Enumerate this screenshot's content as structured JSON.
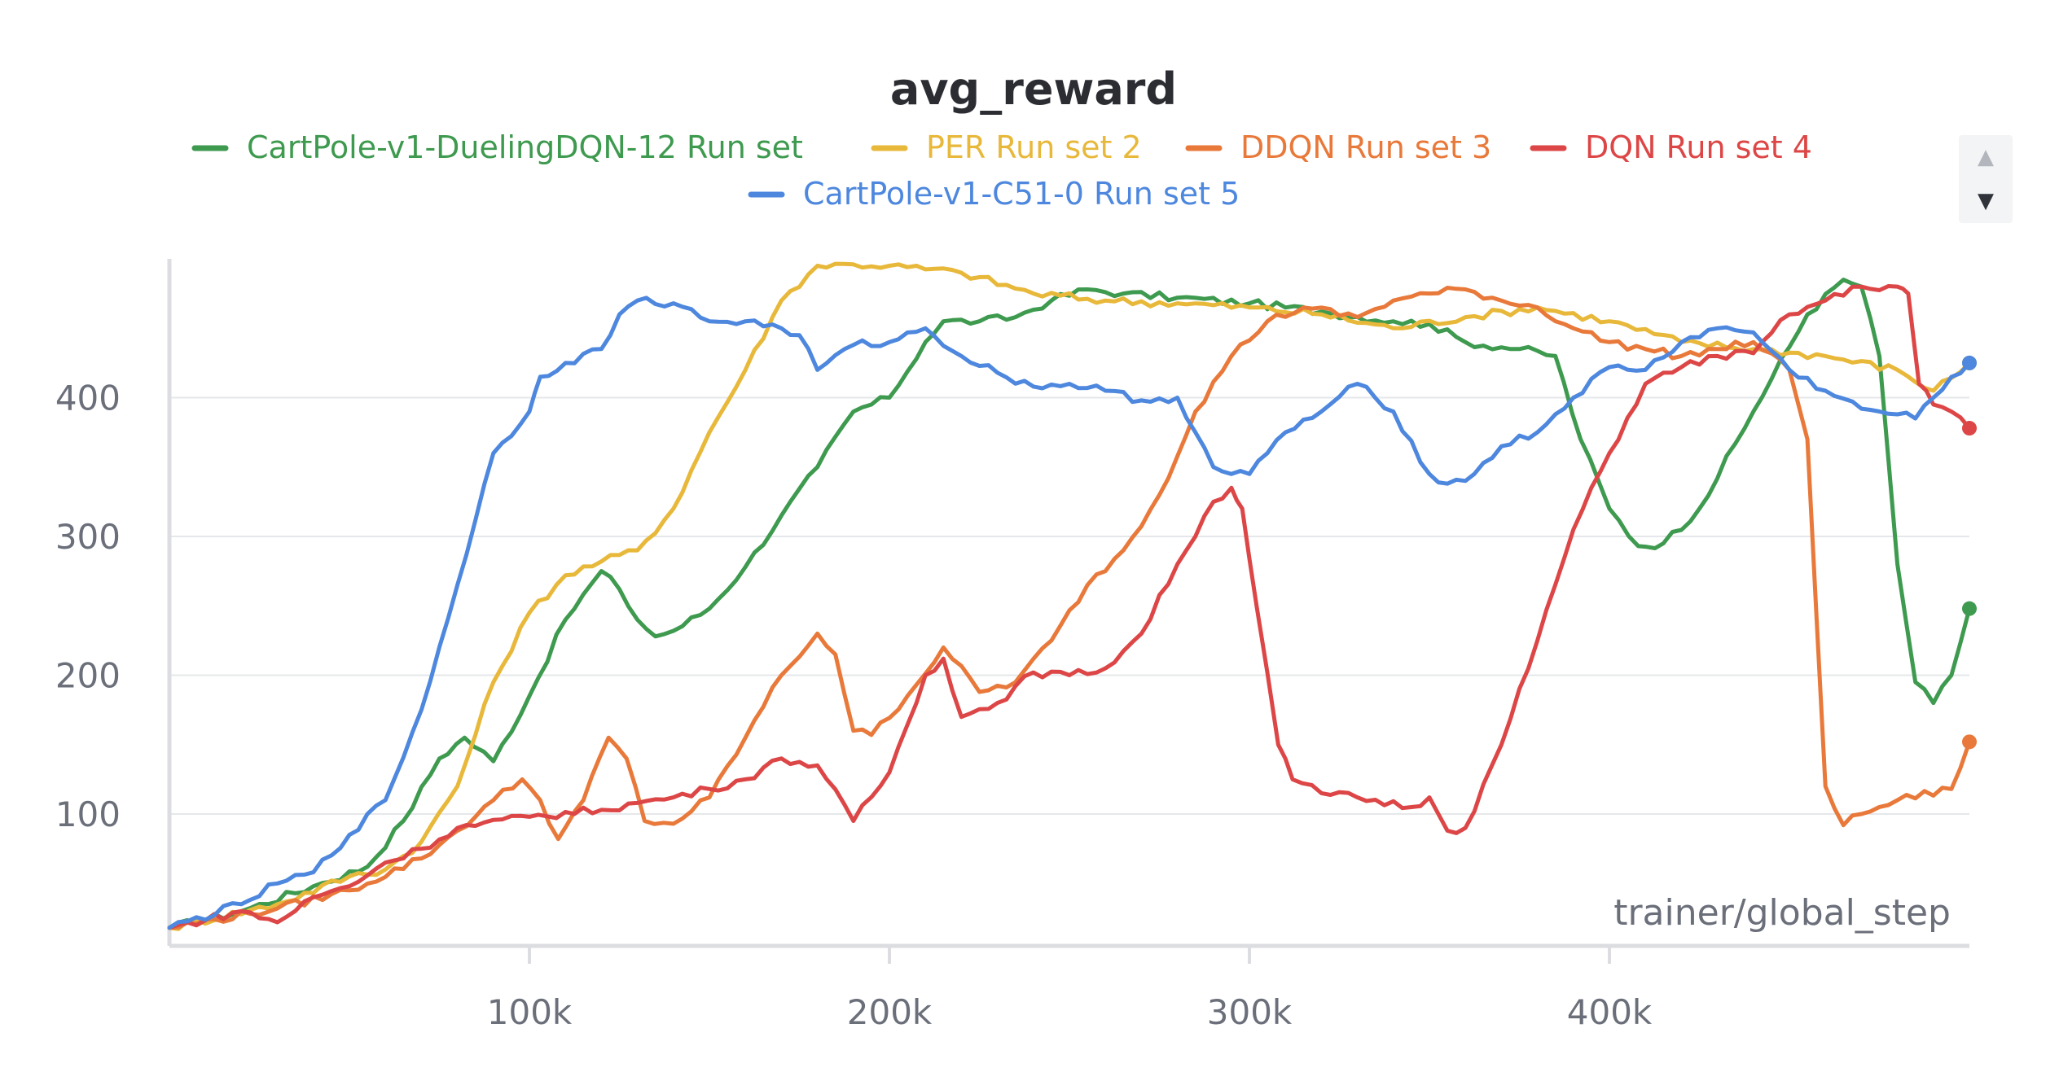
{
  "chart_data": {
    "type": "line",
    "title": "avg_reward",
    "xlabel": "trainer/global_step",
    "ylabel": "",
    "xlim": [
      0,
      500000
    ],
    "ylim": [
      5,
      500
    ],
    "x_ticks": [
      100000,
      200000,
      300000,
      400000
    ],
    "x_tick_labels": [
      "100k",
      "200k",
      "300k",
      "400k"
    ],
    "y_ticks": [
      100,
      200,
      300,
      400
    ],
    "y_tick_labels": [
      "100",
      "200",
      "300",
      "400"
    ],
    "grid": true,
    "legend_position": "top",
    "series": [
      {
        "name": "CartPole-v1-DuelingDQN-12 Run set",
        "color": "#3e9a4f",
        "x": [
          0,
          20000,
          40000,
          55000,
          65000,
          75000,
          82000,
          90000,
          100000,
          110000,
          120000,
          125000,
          130000,
          135000,
          140000,
          150000,
          160000,
          170000,
          180000,
          190000,
          200000,
          210000,
          215000,
          225000,
          235000,
          245000,
          255000,
          265000,
          280000,
          300000,
          320000,
          340000,
          350000,
          360000,
          375000,
          385000,
          392000,
          400000,
          408000,
          415000,
          425000,
          440000,
          455000,
          465000,
          470000,
          475000,
          480000,
          485000,
          490000,
          495000,
          500000
        ],
        "values": [
          18,
          30,
          48,
          62,
          95,
          140,
          155,
          138,
          185,
          240,
          275,
          262,
          240,
          228,
          232,
          248,
          278,
          315,
          350,
          390,
          400,
          440,
          455,
          455,
          458,
          470,
          478,
          475,
          472,
          468,
          462,
          455,
          453,
          440,
          435,
          430,
          370,
          320,
          293,
          295,
          320,
          390,
          460,
          485,
          480,
          430,
          280,
          195,
          180,
          200,
          248
        ]
      },
      {
        "name": "PER Run set 2",
        "color": "#e8b83a",
        "x": [
          0,
          30000,
          50000,
          60000,
          70000,
          80000,
          90000,
          100000,
          110000,
          120000,
          130000,
          140000,
          150000,
          160000,
          170000,
          180000,
          190000,
          200000,
          220000,
          240000,
          260000,
          280000,
          300000,
          320000,
          340000,
          360000,
          380000,
          400000,
          420000,
          440000,
          460000,
          480000,
          490000,
          500000
        ],
        "values": [
          18,
          35,
          55,
          60,
          80,
          120,
          195,
          245,
          272,
          282,
          290,
          320,
          375,
          420,
          470,
          495,
          496,
          495,
          490,
          475,
          470,
          468,
          465,
          460,
          450,
          458,
          465,
          455,
          440,
          435,
          430,
          420,
          405,
          425
        ]
      },
      {
        "name": "DDQN Run set 3",
        "color": "#e8793a",
        "x": [
          0,
          30000,
          50000,
          70000,
          80000,
          90000,
          98000,
          103000,
          108000,
          115000,
          122000,
          127000,
          132000,
          140000,
          150000,
          160000,
          170000,
          180000,
          185000,
          190000,
          195000,
          205000,
          215000,
          225000,
          235000,
          245000,
          255000,
          265000,
          275000,
          285000,
          295000,
          305000,
          315000,
          330000,
          340000,
          350000,
          360000,
          370000,
          380000,
          390000,
          400000,
          410000,
          420000,
          430000,
          440000,
          450000,
          455000,
          460000,
          465000,
          470000,
          480000,
          495000,
          500000
        ],
        "values": [
          18,
          32,
          45,
          68,
          88,
          110,
          125,
          110,
          82,
          110,
          155,
          140,
          95,
          93,
          112,
          155,
          200,
          230,
          215,
          160,
          157,
          185,
          220,
          188,
          195,
          225,
          265,
          290,
          330,
          390,
          430,
          455,
          465,
          458,
          470,
          475,
          478,
          470,
          465,
          450,
          440,
          435,
          430,
          435,
          440,
          420,
          370,
          120,
          92,
          100,
          110,
          118,
          152
        ]
      },
      {
        "name": "DQN Run set 4",
        "color": "#dd4646",
        "x": [
          0,
          20000,
          30000,
          40000,
          50000,
          60000,
          70000,
          80000,
          100000,
          120000,
          130000,
          140000,
          150000,
          160000,
          170000,
          180000,
          190000,
          200000,
          210000,
          215000,
          220000,
          230000,
          240000,
          250000,
          260000,
          270000,
          280000,
          290000,
          295000,
          298000,
          302000,
          308000,
          312000,
          320000,
          330000,
          345000,
          350000,
          355000,
          360000,
          370000,
          380000,
          390000,
          400000,
          410000,
          420000,
          430000,
          440000,
          450000,
          460000,
          470000,
          480000,
          483000,
          486000,
          490000,
          495000,
          500000
        ],
        "values": [
          18,
          30,
          22,
          40,
          48,
          65,
          75,
          90,
          98,
          103,
          108,
          112,
          118,
          125,
          140,
          135,
          95,
          130,
          200,
          212,
          170,
          180,
          202,
          200,
          205,
          230,
          280,
          325,
          335,
          320,
          250,
          150,
          125,
          115,
          112,
          105,
          112,
          88,
          90,
          150,
          225,
          305,
          360,
          410,
          422,
          430,
          432,
          460,
          470,
          480,
          480,
          475,
          410,
          395,
          390,
          378
        ]
      },
      {
        "name": "CartPole-v1-C51-0 Run set 5",
        "color": "#4d87de",
        "x": [
          0,
          20000,
          30000,
          40000,
          50000,
          60000,
          70000,
          80000,
          90000,
          100000,
          103000,
          110000,
          120000,
          125000,
          130000,
          140000,
          150000,
          160000,
          170000,
          175000,
          180000,
          190000,
          200000,
          210000,
          220000,
          230000,
          240000,
          250000,
          260000,
          270000,
          280000,
          285000,
          290000,
          295000,
          300000,
          310000,
          320000,
          330000,
          340000,
          350000,
          355000,
          360000,
          370000,
          380000,
          390000,
          400000,
          410000,
          420000,
          430000,
          440000,
          450000,
          460000,
          470000,
          480000,
          485000,
          490000,
          495000,
          500000
        ],
        "values": [
          18,
          35,
          50,
          58,
          85,
          110,
          175,
          265,
          360,
          390,
          415,
          425,
          435,
          460,
          470,
          468,
          455,
          455,
          450,
          445,
          420,
          438,
          440,
          450,
          430,
          418,
          408,
          410,
          405,
          398,
          400,
          375,
          350,
          345,
          345,
          375,
          390,
          410,
          390,
          345,
          338,
          340,
          365,
          375,
          400,
          422,
          420,
          440,
          450,
          447,
          420,
          405,
          392,
          388,
          385,
          400,
          415,
          425
        ]
      }
    ]
  },
  "legend": {
    "items": [
      {
        "label": "CartPole-v1-DuelingDQN-12 Run set",
        "color": "#3e9a4f"
      },
      {
        "label": "PER Run set 2",
        "color": "#e8b83a"
      },
      {
        "label": "DDQN Run set 3",
        "color": "#e8793a"
      },
      {
        "label": "DQN Run set 4",
        "color": "#dd4646"
      },
      {
        "label": "CartPole-v1-C51-0 Run set 5",
        "color": "#4d87de"
      }
    ]
  },
  "legend_scroll": {
    "up_icon": "caret-up-icon",
    "down_icon": "caret-down-icon",
    "up_glyph": "▲",
    "down_glyph": "▼"
  }
}
